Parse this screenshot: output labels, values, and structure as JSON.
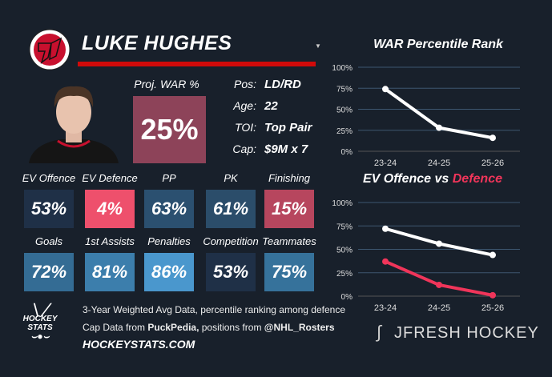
{
  "player": {
    "name": "LUKE HUGHES",
    "proj_war_label": "Proj. WAR %",
    "proj_war_value": "25%",
    "proj_war_color": "#8d4359"
  },
  "info": [
    {
      "k": "Pos:",
      "v": "LD/RD"
    },
    {
      "k": "Age:",
      "v": "22"
    },
    {
      "k": "TOI:",
      "v": "Top Pair"
    },
    {
      "k": "Cap:",
      "v": "$9M x 7"
    }
  ],
  "tiles": [
    {
      "label": "EV Offence",
      "value": "53%",
      "color": "#1f3047"
    },
    {
      "label": "EV Defence",
      "value": "4%",
      "color": "#ee506c"
    },
    {
      "label": "PP",
      "value": "63%",
      "color": "#2b5070"
    },
    {
      "label": "PK",
      "value": "61%",
      "color": "#2b4d6a"
    },
    {
      "label": "Finishing",
      "value": "15%",
      "color": "#b7465e"
    },
    {
      "label": "Goals",
      "value": "72%",
      "color": "#346c94"
    },
    {
      "label": "1st Assists",
      "value": "81%",
      "color": "#3c7eac"
    },
    {
      "label": "Penalties",
      "value": "86%",
      "color": "#4a97cd"
    },
    {
      "label": "Competition",
      "value": "53%",
      "color": "#1f3047"
    },
    {
      "label": "Teammates",
      "value": "75%",
      "color": "#36729b"
    }
  ],
  "footer": {
    "line1": "3-Year Weighted Avg Data, percentile ranking among defence",
    "line2a": "Cap Data from ",
    "line2b": "PuckPedia,",
    "line2c": " positions from ",
    "line2d": "@NHL_Rosters",
    "site": "HOCKEYSTATS.COM",
    "hs_logo": "HOCKEY STATS",
    "brand": "JFRESH HOCKEY"
  },
  "chart_data": [
    {
      "type": "line",
      "title": "WAR Percentile Rank",
      "categories": [
        "23-24",
        "24-25",
        "25-26"
      ],
      "yticks": [
        "0%",
        "25%",
        "50%",
        "75%",
        "100%"
      ],
      "ylim": [
        0,
        100
      ],
      "series": [
        {
          "name": "WAR",
          "values": [
            74,
            28,
            16
          ],
          "color": "#ffffff"
        }
      ]
    },
    {
      "type": "line",
      "title_a": "EV Offence vs ",
      "title_b": "Defence",
      "categories": [
        "23-24",
        "24-25",
        "25-26"
      ],
      "yticks": [
        "0%",
        "25%",
        "50%",
        "75%",
        "100%"
      ],
      "ylim": [
        0,
        100
      ],
      "series": [
        {
          "name": "EV Offence",
          "values": [
            72,
            56,
            44
          ],
          "color": "#ffffff"
        },
        {
          "name": "EV Defence",
          "values": [
            37,
            12,
            1
          ],
          "color": "#f0355a"
        }
      ]
    }
  ]
}
